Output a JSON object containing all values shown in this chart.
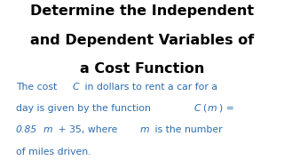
{
  "title_lines": [
    "Determine the Independent",
    "and Dependent Variables of",
    "a Cost Function"
  ],
  "title_color": "#000000",
  "body_color": "#2B6CB0",
  "background_color": "#FFFFFF",
  "title_fontsize": 11.5,
  "body_fontsize": 7.8,
  "body_line1_normal1": "The cost ",
  "body_line1_italic1": "C",
  "body_line1_normal2": " in dollars to rent a car for a",
  "body_line2_normal1": "day is given by the function ",
  "body_line2_italic1": "C",
  "body_line2_normal2": "(",
  "body_line2_italic2": "m",
  "body_line2_normal3": ") =",
  "body_line3_italic1": "0.85",
  "body_line3_italic2": "m",
  "body_line3_normal1": " + 35, where ",
  "body_line3_italic3": "m",
  "body_line3_normal2": " is the number",
  "body_line4_normal1": "of miles driven."
}
